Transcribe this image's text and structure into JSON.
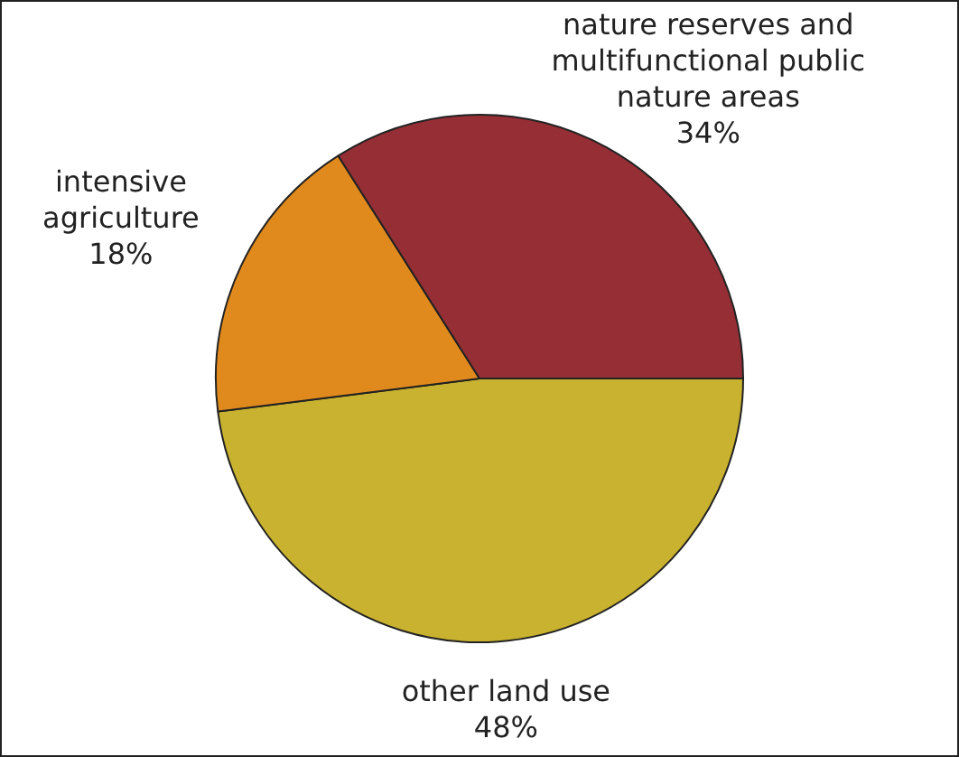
{
  "chart_data": {
    "type": "pie",
    "categories": [
      "other land use",
      "intensive agriculture",
      "nature reserves and multifunctional public nature areas"
    ],
    "values": [
      48,
      18,
      34
    ],
    "colors": [
      "#c9b22f",
      "#e08a1e",
      "#952f35"
    ],
    "value_labels": [
      "48%",
      "18%",
      "34%"
    ],
    "legend": false
  }
}
